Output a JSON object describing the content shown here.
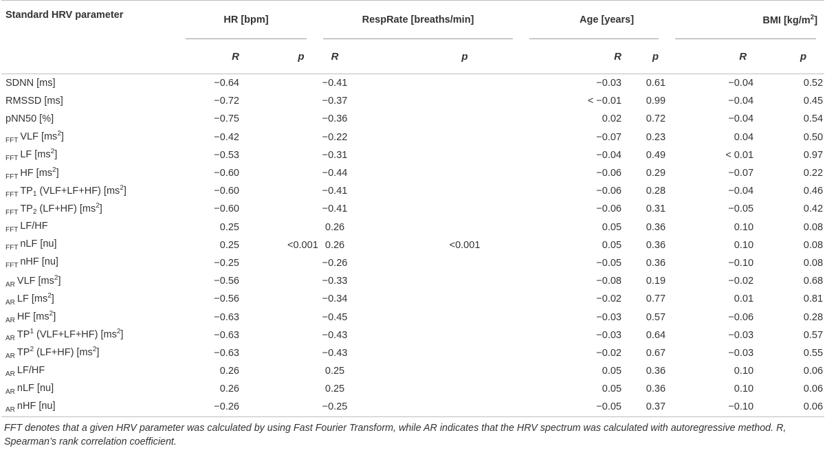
{
  "table": {
    "header": {
      "param_label": "Standard HRV parameter",
      "groups": [
        {
          "label": "HR [bpm]"
        },
        {
          "label": "RespRate [breaths/min]"
        },
        {
          "label": "Age [years]"
        },
        {
          "label": "BMI [kg/m",
          "sup": "2",
          "tail": "]"
        }
      ],
      "r_label": "R",
      "p_label": "p"
    },
    "rows": [
      {
        "prefix": "",
        "name": "SDNN [ms]",
        "hr_r": "−0.64",
        "resp_r": "−0.41",
        "age_r": "−0.03",
        "age_p": "0.61",
        "bmi_r": "−0.04",
        "bmi_p": "0.52"
      },
      {
        "prefix": "",
        "name": "RMSSD [ms]",
        "hr_r": "−0.72",
        "resp_r": "−0.37",
        "age_r": "< −0.01",
        "age_p": "0.99",
        "bmi_r": "−0.04",
        "bmi_p": "0.45"
      },
      {
        "prefix": "",
        "name": "pNN50 [%]",
        "hr_r": "−0.75",
        "resp_r": "−0.36",
        "age_r": "0.02",
        "age_p": "0.72",
        "bmi_r": "−0.04",
        "bmi_p": "0.54"
      },
      {
        "prefix": "FFT",
        "name": "VLF [ms",
        "sup": "2",
        "tail": "]",
        "hr_r": "−0.42",
        "resp_r": "−0.22",
        "age_r": "−0.07",
        "age_p": "0.23",
        "bmi_r": "0.04",
        "bmi_p": "0.50"
      },
      {
        "prefix": "FFT",
        "name": "LF [ms",
        "sup": "2",
        "tail": "]",
        "hr_r": "−0.53",
        "resp_r": "−0.31",
        "age_r": "−0.04",
        "age_p": "0.49",
        "bmi_r": "< 0.01",
        "bmi_p": "0.97"
      },
      {
        "prefix": "FFT",
        "name": "HF [ms",
        "sup": "2",
        "tail": "]",
        "hr_r": "−0.60",
        "resp_r": "−0.44",
        "age_r": "−0.06",
        "age_p": "0.29",
        "bmi_r": "−0.07",
        "bmi_p": "0.22"
      },
      {
        "prefix": "FFT",
        "name": "TP",
        "isub": "1",
        "name2": " (VLF+LF+HF) [ms",
        "sup": "2",
        "tail": "]",
        "hr_r": "−0.60",
        "resp_r": "−0.41",
        "age_r": "−0.06",
        "age_p": "0.28",
        "bmi_r": "−0.04",
        "bmi_p": "0.46"
      },
      {
        "prefix": "FFT",
        "name": "TP",
        "isub": "2",
        "name2": " (LF+HF) [ms",
        "sup": "2",
        "tail": "]",
        "hr_r": "−0.60",
        "resp_r": "−0.41",
        "age_r": "−0.06",
        "age_p": "0.31",
        "bmi_r": "−0.05",
        "bmi_p": "0.42"
      },
      {
        "prefix": "FFT",
        "name": "LF/HF",
        "hr_r": "0.25",
        "resp_r": "0.26",
        "age_r": "0.05",
        "age_p": "0.36",
        "bmi_r": "0.10",
        "bmi_p": "0.08"
      },
      {
        "prefix": "FFT",
        "name": "nLF [nu]",
        "hr_r": "0.25",
        "hr_p": "<0.001",
        "resp_r": "0.26",
        "resp_p": "<0.001",
        "age_r": "0.05",
        "age_p": "0.36",
        "bmi_r": "0.10",
        "bmi_p": "0.08"
      },
      {
        "prefix": "FFT",
        "name": "nHF [nu]",
        "hr_r": "−0.25",
        "resp_r": "−0.26",
        "age_r": "−0.05",
        "age_p": "0.36",
        "bmi_r": "−0.10",
        "bmi_p": "0.08"
      },
      {
        "prefix": "AR",
        "name": "VLF [ms",
        "sup": "2",
        "tail": "]",
        "hr_r": "−0.56",
        "resp_r": "−0.33",
        "age_r": "−0.08",
        "age_p": "0.19",
        "bmi_r": "−0.02",
        "bmi_p": "0.68"
      },
      {
        "prefix": "AR",
        "name": "LF [ms",
        "sup": "2",
        "tail": "]",
        "hr_r": "−0.56",
        "resp_r": "−0.34",
        "age_r": "−0.02",
        "age_p": "0.77",
        "bmi_r": "0.01",
        "bmi_p": "0.81"
      },
      {
        "prefix": "AR",
        "name": "HF [ms",
        "sup": "2",
        "tail": "]",
        "hr_r": "−0.63",
        "resp_r": "−0.45",
        "age_r": "−0.03",
        "age_p": "0.57",
        "bmi_r": "−0.06",
        "bmi_p": "0.28"
      },
      {
        "prefix": "AR",
        "name": "TP",
        "psup": "1",
        "name2": " (VLF+LF+HF) [ms",
        "sup": "2",
        "tail": "]",
        "hr_r": "−0.63",
        "resp_r": "−0.43",
        "age_r": "−0.03",
        "age_p": "0.64",
        "bmi_r": "−0.03",
        "bmi_p": "0.57"
      },
      {
        "prefix": "AR",
        "name": "TP",
        "psup": "2",
        "name2": " (LF+HF) [ms",
        "sup": "2",
        "tail": "]",
        "hr_r": "−0.63",
        "resp_r": "−0.43",
        "age_r": "−0.02",
        "age_p": "0.67",
        "bmi_r": "−0.03",
        "bmi_p": "0.55"
      },
      {
        "prefix": "AR",
        "name": "LF/HF",
        "hr_r": "0.26",
        "resp_r": "0.25",
        "age_r": "0.05",
        "age_p": "0.36",
        "bmi_r": "0.10",
        "bmi_p": "0.06"
      },
      {
        "prefix": "AR",
        "name": "nLF [nu]",
        "hr_r": "0.26",
        "resp_r": "0.25",
        "age_r": "0.05",
        "age_p": "0.36",
        "bmi_r": "0.10",
        "bmi_p": "0.06"
      },
      {
        "prefix": "AR",
        "name": "nHF [nu]",
        "hr_r": "−0.26",
        "resp_r": "−0.25",
        "age_r": "−0.05",
        "age_p": "0.37",
        "bmi_r": "−0.10",
        "bmi_p": "0.06"
      }
    ]
  },
  "footnote": "FFT denotes that a given HRV parameter was calculated by using Fast Fourier Transform, while AR indicates that the HRV spectrum was calculated with autoregressive method. R, Spearman’s rank correlation coefficient."
}
